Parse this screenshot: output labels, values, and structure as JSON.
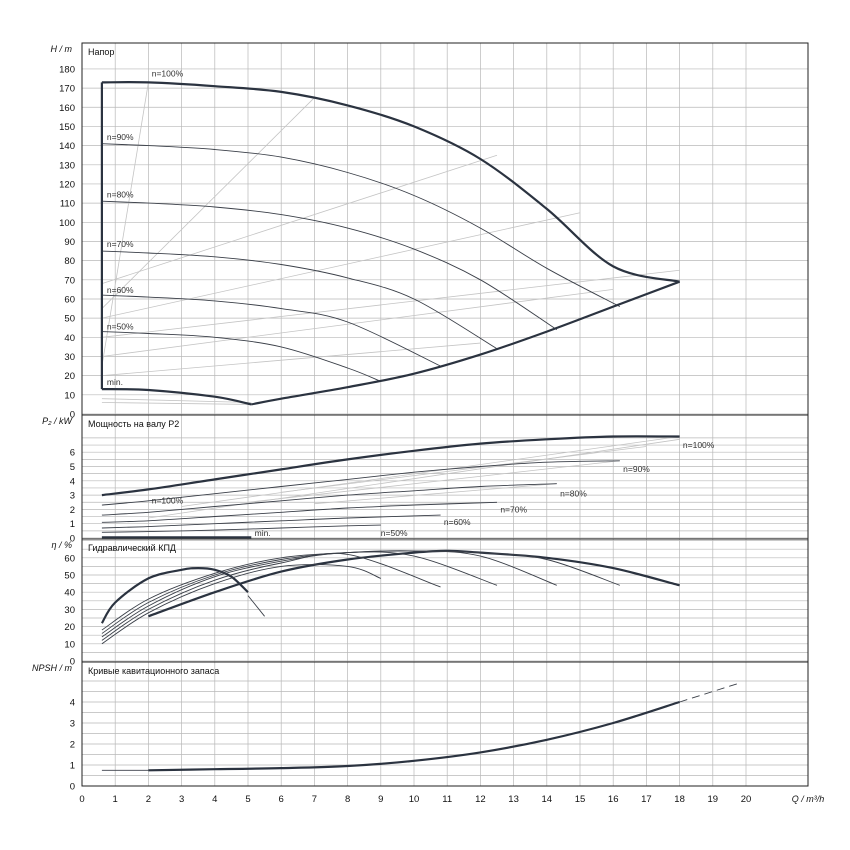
{
  "chart_data": {
    "type": "line",
    "x_axis": {
      "label": "Q / m³/h",
      "range": [
        0,
        20
      ],
      "ticks": [
        "0",
        "1",
        "2",
        "3",
        "4",
        "5",
        "6",
        "7",
        "8",
        "9",
        "10",
        "11",
        "12",
        "13",
        "14",
        "15",
        "16",
        "17",
        "18",
        "19",
        "20"
      ]
    },
    "panels": [
      {
        "id": "head",
        "title": "Напор",
        "ylabel": "H / m",
        "ylim": [
          0,
          180
        ],
        "yticks": [
          "0",
          "10",
          "20",
          "30",
          "40",
          "50",
          "60",
          "70",
          "80",
          "90",
          "100",
          "110",
          "120",
          "130",
          "140",
          "150",
          "160",
          "170",
          "180"
        ],
        "series": [
          {
            "name": "n=100%",
            "bold": true,
            "x": [
              0.6,
              2,
              4,
              6,
              8,
              10,
              12,
              14,
              16,
              18
            ],
            "y": [
              173,
              173,
              171,
              168,
              161,
              150,
              133,
              107,
              77,
              69
            ]
          },
          {
            "name": "n=90%",
            "x": [
              0.6,
              2,
              4,
              6,
              8,
              10,
              12,
              14,
              16.2
            ],
            "y": [
              141,
              140,
              138,
              134,
              126,
              114,
              97,
              76,
              56
            ]
          },
          {
            "name": "n=80%",
            "x": [
              0.6,
              2,
              4,
              6,
              8,
              10,
              12,
              14.3
            ],
            "y": [
              111,
              110,
              108,
              104,
              97,
              86,
              70,
              44
            ]
          },
          {
            "name": "n=70%",
            "x": [
              0.6,
              2,
              4,
              6,
              8,
              10,
              12.5
            ],
            "y": [
              85,
              84,
              82,
              78,
              71,
              60,
              34
            ]
          },
          {
            "name": "n=60%",
            "x": [
              0.6,
              2,
              4,
              6,
              8,
              10.8
            ],
            "y": [
              62,
              61,
              59,
              55,
              48,
              25
            ]
          },
          {
            "name": "n=50%",
            "x": [
              0.6,
              2,
              4,
              6,
              8,
              9
            ],
            "y": [
              43,
              42,
              40,
              35,
              24,
              17
            ]
          },
          {
            "name": "min.",
            "bold": true,
            "x": [
              0.6,
              2,
              4,
              5.1
            ],
            "y": [
              13,
              12.5,
              9,
              5
            ]
          },
          {
            "name": "",
            "bold": true,
            "x": [
              5.1,
              6,
              8,
              10,
              12,
              14,
              16,
              18
            ],
            "y": [
              5,
              8,
              14,
              21,
              31,
              43,
              56,
              69
            ]
          },
          {
            "name": "",
            "bold": true,
            "x": [
              0.6,
              0.6
            ],
            "y": [
              13,
              173
            ]
          }
        ],
        "labels": [
          {
            "text": "n=100%",
            "x": 2.1,
            "y": 176
          },
          {
            "text": "n=90%",
            "x": 0.75,
            "y": 143
          },
          {
            "text": "n=80%",
            "x": 0.75,
            "y": 113
          },
          {
            "text": "n=70%",
            "x": 0.75,
            "y": 87
          },
          {
            "text": "n=60%",
            "x": 0.75,
            "y": 63
          },
          {
            "text": "n=50%",
            "x": 0.75,
            "y": 44
          },
          {
            "text": "min.",
            "x": 0.75,
            "y": 15
          }
        ]
      },
      {
        "id": "power",
        "title": "Мощность на валу P2",
        "ylabel": "P₂ / kW",
        "ylim": [
          0,
          7
        ],
        "yticks": [
          "0",
          "1",
          "2",
          "3",
          "4",
          "5",
          "6"
        ],
        "series": [
          {
            "name": "n=100%",
            "bold": true,
            "x": [
              0.6,
              2,
              4,
              6,
              8,
              10,
              12,
              14,
              16,
              18
            ],
            "y": [
              3.0,
              3.4,
              4.1,
              4.8,
              5.5,
              6.1,
              6.6,
              6.9,
              7.1,
              7.1
            ]
          },
          {
            "name": "n=90%",
            "x": [
              0.6,
              2,
              4,
              6,
              8,
              10,
              12,
              14,
              16.2
            ],
            "y": [
              2.3,
              2.6,
              3.1,
              3.6,
              4.1,
              4.6,
              5.0,
              5.3,
              5.4
            ]
          },
          {
            "name": "n=80%",
            "x": [
              0.6,
              2,
              4,
              6,
              8,
              10,
              12,
              14.3
            ],
            "y": [
              1.6,
              1.8,
              2.2,
              2.6,
              3.0,
              3.3,
              3.6,
              3.8
            ]
          },
          {
            "name": "n=70%",
            "x": [
              0.6,
              2,
              4,
              6,
              8,
              10,
              12.5
            ],
            "y": [
              1.1,
              1.2,
              1.5,
              1.8,
              2.1,
              2.3,
              2.5
            ]
          },
          {
            "name": "n=60%",
            "x": [
              0.6,
              2,
              4,
              6,
              8,
              10.8
            ],
            "y": [
              0.7,
              0.8,
              1.0,
              1.2,
              1.4,
              1.6
            ]
          },
          {
            "name": "n=50%",
            "x": [
              0.6,
              2,
              4,
              6,
              8,
              9
            ],
            "y": [
              0.4,
              0.45,
              0.55,
              0.7,
              0.85,
              0.9
            ]
          },
          {
            "name": "min.",
            "bold": true,
            "x": [
              0.6,
              5.1
            ],
            "y": [
              0.05,
              0.05
            ]
          }
        ],
        "labels": [
          {
            "text": "n=100%",
            "x": 18.1,
            "y": 6.3
          },
          {
            "text": "n=100%",
            "x": 2.1,
            "y": 2.4
          },
          {
            "text": "n=90%",
            "x": 16.3,
            "y": 4.6
          },
          {
            "text": "n=80%",
            "x": 14.4,
            "y": 2.9
          },
          {
            "text": "n=70%",
            "x": 12.6,
            "y": 1.8
          },
          {
            "text": "n=60%",
            "x": 10.9,
            "y": 0.9
          },
          {
            "text": "n=50%",
            "x": 9.0,
            "y": 0.15
          },
          {
            "text": "min.",
            "x": 5.2,
            "y": 0.15
          }
        ]
      },
      {
        "id": "efficiency",
        "title": "Гидравлический КПД",
        "ylabel": "η / %",
        "ylim": [
          0,
          70
        ],
        "yticks": [
          "0",
          "10",
          "20",
          "30",
          "40",
          "50",
          "60"
        ],
        "series": [
          {
            "name": "n=100%",
            "bold": true,
            "x": [
              2,
              4,
              6,
              8,
              10,
              11,
              12,
              14,
              16,
              18
            ],
            "y": [
              26,
              40,
              52,
              59,
              63,
              64,
              63,
              60,
              54,
              44
            ]
          },
          {
            "name": "min.",
            "bold": true,
            "x": [
              0.6,
              1,
              2,
              3,
              3.5,
              4,
              4.5,
              5
            ],
            "y": [
              22,
              34,
              48,
              53,
              54,
              53,
              49,
              40
            ]
          },
          {
            "name": "",
            "x": [
              5,
              5.5
            ],
            "y": [
              38,
              26
            ]
          },
          {
            "name": "",
            "x": [
              0.6,
              2,
              4,
              6,
              8,
              9
            ],
            "y": [
              10,
              28,
              45,
              55,
              55,
              48
            ]
          },
          {
            "name": "",
            "x": [
              0.6,
              2,
              4,
              6,
              8,
              10.8
            ],
            "y": [
              12,
              30,
              47,
              57,
              62,
              43
            ]
          },
          {
            "name": "",
            "x": [
              0.6,
              2,
              4,
              6,
              8,
              10,
              12.5
            ],
            "y": [
              14,
              32,
              49,
              58,
              63,
              61,
              44
            ]
          },
          {
            "name": "",
            "x": [
              0.6,
              2,
              4,
              6,
              8,
              10,
              12,
              14.3
            ],
            "y": [
              16,
              34,
              50,
              59,
              63,
              64,
              61,
              44
            ]
          },
          {
            "name": "",
            "x": [
              0.6,
              2,
              4,
              6,
              8,
              10,
              12,
              14,
              16.2
            ],
            "y": [
              18,
              36,
              51,
              60,
              63,
              64,
              63,
              59,
              44
            ]
          }
        ],
        "labels": []
      },
      {
        "id": "npsh",
        "title": "Кривые кавитационного запаса",
        "ylabel": "NPSH / m",
        "ylim": [
          0,
          5
        ],
        "yticks": [
          "0",
          "1",
          "2",
          "3",
          "4"
        ],
        "series": [
          {
            "name": "",
            "x": [
              0.6,
              2
            ],
            "y": [
              0.75,
              0.75
            ]
          },
          {
            "name": "n=100%",
            "bold": true,
            "x": [
              2,
              4,
              6,
              8,
              10,
              12,
              14,
              16,
              18
            ],
            "y": [
              0.75,
              0.8,
              0.85,
              0.95,
              1.2,
              1.6,
              2.2,
              3.0,
              4.0
            ]
          },
          {
            "name": "",
            "dashed": true,
            "x": [
              18,
              19.8
            ],
            "y": [
              4.0,
              4.9
            ]
          }
        ],
        "labels": []
      }
    ]
  }
}
